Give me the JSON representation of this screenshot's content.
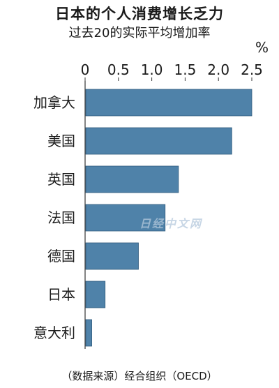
{
  "chart_data": {
    "type": "bar",
    "orientation": "horizontal",
    "title": "日本的个人消费增长乏力",
    "subtitle": "过去20的实际平均增加率",
    "unit": "%",
    "categories": [
      "加拿大",
      "美国",
      "英国",
      "法国",
      "德国",
      "日本",
      "意大利"
    ],
    "values": [
      2.5,
      2.2,
      1.4,
      1.2,
      0.8,
      0.3,
      0.1
    ],
    "xticks": [
      "0",
      "0.5",
      "1.0",
      "1.5",
      "2.0",
      "2.5"
    ],
    "xlim": [
      0,
      2.5
    ],
    "source": "（数据来源）经合组织（OECD）",
    "bar_color": "#4f82a9",
    "watermark": "日经中文网"
  }
}
